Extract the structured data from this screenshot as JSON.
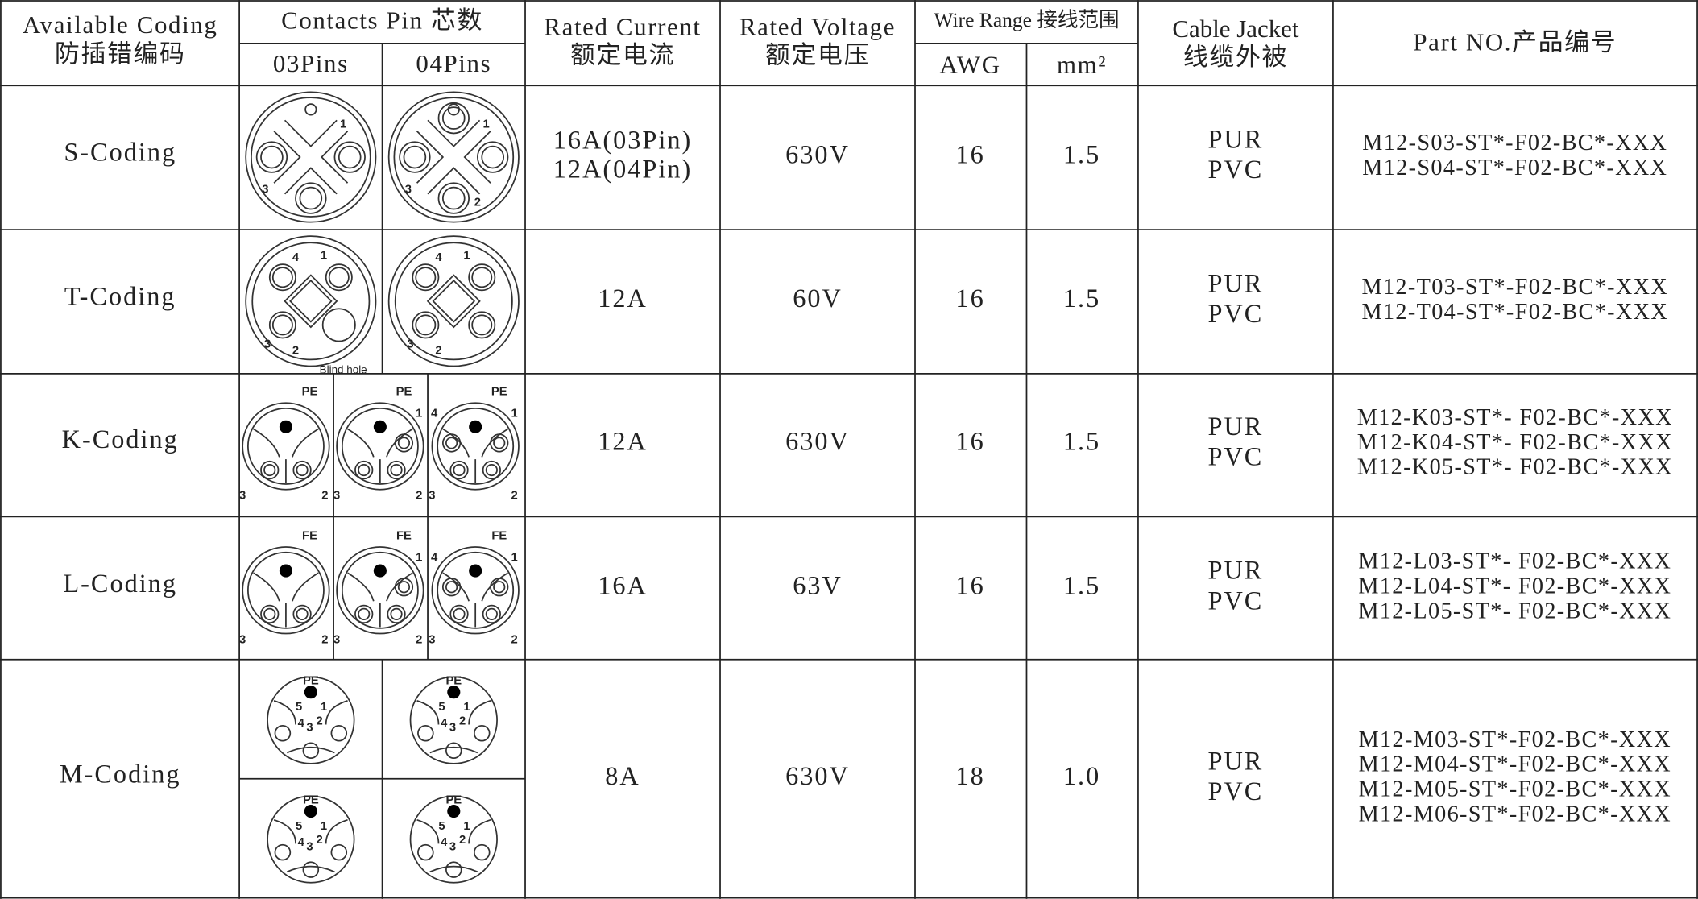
{
  "header": {
    "coding": [
      "Available Coding",
      "防插错编码"
    ],
    "contacts": "Contacts Pin 芯数",
    "pins03": "03Pins",
    "pins04": "04Pins",
    "current": [
      "Rated Current",
      "额定电流"
    ],
    "voltage": [
      "Rated Voltage",
      "额定电压"
    ],
    "wire_range": "Wire Range 接线范围",
    "awg": "AWG",
    "mm2": "mm²",
    "jacket": [
      "Cable Jacket",
      "线缆外被"
    ],
    "part_no": "Part NO.产品编号"
  },
  "rows": [
    {
      "coding": "S-Coding",
      "current": [
        "16A(03Pin)",
        "12A(04Pin)"
      ],
      "voltage": "630V",
      "awg": "16",
      "mm2": "1.5",
      "jacket": [
        "PUR",
        "PVC"
      ],
      "part_numbers": [
        "M12-S03-ST*-F02-BC*-XXX",
        "M12-S04-ST*-F02-BC*-XXX"
      ],
      "diagrams": [
        {
          "labels": [
            "1",
            "3"
          ]
        },
        {
          "labels": [
            "1",
            "2",
            "3"
          ]
        }
      ]
    },
    {
      "coding": "T-Coding",
      "current": [
        "12A"
      ],
      "voltage": "60V",
      "awg": "16",
      "mm2": "1.5",
      "jacket": [
        "PUR",
        "PVC"
      ],
      "part_numbers": [
        "M12-T03-ST*-F02-BC*-XXX",
        "M12-T04-ST*-F02-BC*-XXX"
      ],
      "diagrams": [
        {
          "labels": [
            "4",
            "1",
            "3",
            "2",
            "Blind hole"
          ]
        },
        {
          "labels": [
            "4",
            "1",
            "3",
            "2"
          ]
        }
      ]
    },
    {
      "coding": "K-Coding",
      "current": [
        "12A"
      ],
      "voltage": "630V",
      "awg": "16",
      "mm2": "1.5",
      "jacket": [
        "PUR",
        "PVC"
      ],
      "part_numbers": [
        "M12-K03-ST*- F02-BC*-XXX",
        "M12-K04-ST*- F02-BC*-XXX",
        "M12-K05-ST*- F02-BC*-XXX"
      ],
      "diagrams": [
        {
          "labels": [
            "PE",
            "3",
            "2"
          ]
        },
        {
          "labels": [
            "PE",
            "1",
            "3",
            "2"
          ]
        },
        {
          "labels": [
            "PE",
            "4",
            "1",
            "3",
            "2"
          ]
        }
      ]
    },
    {
      "coding": "L-Coding",
      "current": [
        "16A"
      ],
      "voltage": "63V",
      "awg": "16",
      "mm2": "1.5",
      "jacket": [
        "PUR",
        "PVC"
      ],
      "part_numbers": [
        "M12-L03-ST*- F02-BC*-XXX",
        "M12-L04-ST*- F02-BC*-XXX",
        "M12-L05-ST*- F02-BC*-XXX"
      ],
      "diagrams": [
        {
          "labels": [
            "FE",
            "3",
            "2"
          ]
        },
        {
          "labels": [
            "FE",
            "1",
            "3",
            "2"
          ]
        },
        {
          "labels": [
            "FE",
            "4",
            "1",
            "3",
            "2"
          ]
        }
      ]
    },
    {
      "coding": "M-Coding",
      "current": [
        "8A"
      ],
      "voltage": "630V",
      "awg": "18",
      "mm2": "1.0",
      "jacket": [
        "PUR",
        "PVC"
      ],
      "part_numbers": [
        "M12-M03-ST*-F02-BC*-XXX",
        "M12-M04-ST*-F02-BC*-XXX",
        "M12-M05-ST*-F02-BC*-XXX",
        "M12-M06-ST*-F02-BC*-XXX"
      ],
      "diagrams": [
        {
          "labels": [
            "PE",
            "5",
            "1",
            "4",
            "3",
            "2"
          ]
        },
        {
          "labels": [
            "PE",
            "5",
            "1",
            "4",
            "3",
            "2"
          ]
        },
        {
          "labels": [
            "PE",
            "5",
            "1",
            "4",
            "3",
            "2"
          ]
        },
        {
          "labels": [
            "PE",
            "5",
            "1",
            "4",
            "3",
            "2"
          ]
        }
      ]
    }
  ]
}
